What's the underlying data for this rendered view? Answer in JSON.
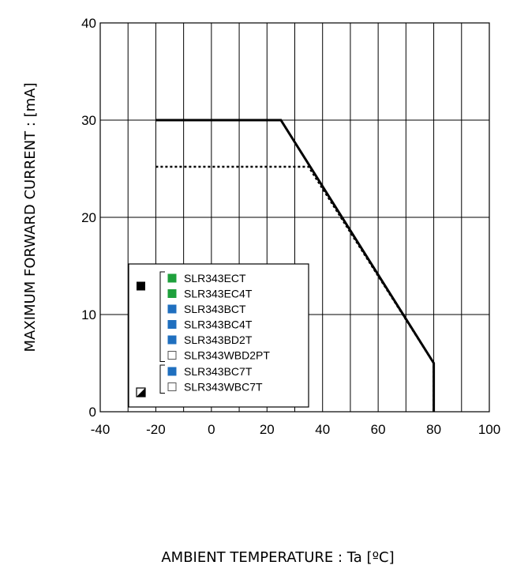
{
  "chart_data": {
    "type": "line",
    "xlabel": "AMBIENT TEMPERATURE : Ta [ºC]",
    "ylabel": "MAXIMUM FORWARD CURRENT :  [mA]",
    "xlim": [
      -40,
      100
    ],
    "ylim": [
      0,
      40
    ],
    "x_ticks": [
      "-40",
      "-20",
      "0",
      "20",
      "40",
      "60",
      "80",
      "100"
    ],
    "y_ticks": [
      "0",
      "10",
      "20",
      "30",
      "40"
    ],
    "x_grid_step": 10,
    "y_grid_step": 10,
    "grid": true,
    "series": [
      {
        "style": "solid",
        "points": [
          [
            -20,
            30
          ],
          [
            25,
            30
          ],
          [
            80,
            5
          ],
          [
            80,
            0
          ]
        ]
      },
      {
        "style": "dotted",
        "points": [
          [
            -20,
            25.2
          ],
          [
            35,
            25.2
          ],
          [
            80,
            5
          ],
          [
            80,
            0
          ]
        ]
      }
    ],
    "legend": {
      "placement": "bottom-left",
      "groups": [
        {
          "marker": "solid-black",
          "items": [
            {
              "label": "SLR343ECT",
              "color": "#1ea03c"
            },
            {
              "label": "SLR343EC4T",
              "color": "#1ea03c"
            },
            {
              "label": "SLR343BCT",
              "color": "#1f6fbf"
            },
            {
              "label": "SLR343BC4T",
              "color": "#1f6fbf"
            },
            {
              "label": "SLR343BD2T",
              "color": "#1f6fbf"
            },
            {
              "label": "SLR343WBD2PT",
              "color": "#ffffff"
            }
          ]
        },
        {
          "marker": "half-black",
          "items": [
            {
              "label": "SLR343BC7T",
              "color": "#1f6fbf"
            },
            {
              "label": "SLR343WBC7T",
              "color": "#ffffff"
            }
          ]
        }
      ]
    }
  }
}
